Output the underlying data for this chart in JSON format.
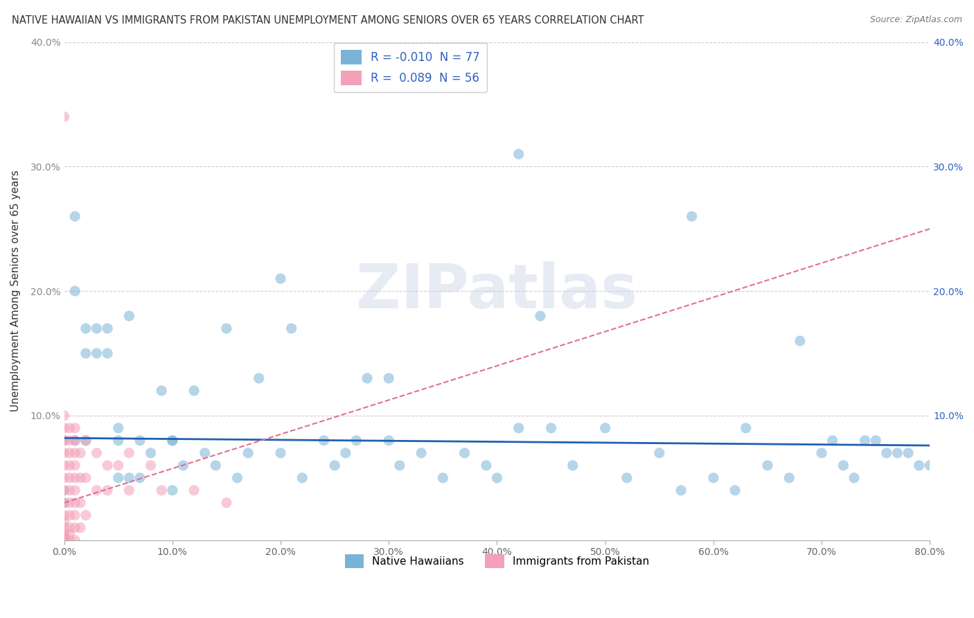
{
  "title": "NATIVE HAWAIIAN VS IMMIGRANTS FROM PAKISTAN UNEMPLOYMENT AMONG SENIORS OVER 65 YEARS CORRELATION CHART",
  "source": "Source: ZipAtlas.com",
  "ylabel": "Unemployment Among Seniors over 65 years",
  "legend_labels": [
    "Native Hawaiians",
    "Immigrants from Pakistan"
  ],
  "xlim": [
    0.0,
    0.8
  ],
  "ylim": [
    0.0,
    0.4
  ],
  "xticks": [
    0.0,
    0.1,
    0.2,
    0.3,
    0.4,
    0.5,
    0.6,
    0.7,
    0.8
  ],
  "yticks": [
    0.0,
    0.1,
    0.2,
    0.3,
    0.4
  ],
  "xticklabels": [
    "0.0%",
    "10.0%",
    "20.0%",
    "30.0%",
    "40.0%",
    "50.0%",
    "60.0%",
    "70.0%",
    "80.0%"
  ],
  "yticklabels_left": [
    "",
    "10.0%",
    "20.0%",
    "30.0%",
    "40.0%"
  ],
  "yticklabels_right": [
    "",
    "10.0%",
    "20.0%",
    "30.0%",
    "40.0%"
  ],
  "blue_scatter_color": "#7ab3d8",
  "pink_scatter_color": "#f4a0b8",
  "blue_line_color": "#2060b0",
  "pink_line_color": "#e07090",
  "right_tick_color": "#3060c0",
  "left_tick_color": "#888888",
  "background_color": "#ffffff",
  "watermark_zip": "ZIP",
  "watermark_atlas": "atlas",
  "watermark_z": "Z",
  "R_blue": -0.01,
  "R_pink": 0.089,
  "N_blue": 77,
  "N_pink": 56,
  "blue_points_x": [
    0.01,
    0.01,
    0.01,
    0.02,
    0.02,
    0.02,
    0.03,
    0.03,
    0.04,
    0.04,
    0.05,
    0.05,
    0.06,
    0.06,
    0.07,
    0.07,
    0.08,
    0.09,
    0.1,
    0.1,
    0.11,
    0.12,
    0.13,
    0.14,
    0.15,
    0.16,
    0.17,
    0.18,
    0.2,
    0.21,
    0.22,
    0.24,
    0.25,
    0.26,
    0.27,
    0.28,
    0.3,
    0.31,
    0.33,
    0.35,
    0.37,
    0.39,
    0.4,
    0.42,
    0.44,
    0.45,
    0.47,
    0.5,
    0.52,
    0.55,
    0.57,
    0.58,
    0.6,
    0.62,
    0.63,
    0.65,
    0.67,
    0.68,
    0.7,
    0.71,
    0.72,
    0.73,
    0.74,
    0.75,
    0.76,
    0.77,
    0.78,
    0.79,
    0.8,
    0.0,
    0.0,
    0.0,
    0.05,
    0.1,
    0.2,
    0.3,
    0.42
  ],
  "blue_points_y": [
    0.26,
    0.2,
    0.08,
    0.17,
    0.15,
    0.08,
    0.17,
    0.15,
    0.17,
    0.15,
    0.08,
    0.05,
    0.18,
    0.05,
    0.08,
    0.05,
    0.07,
    0.12,
    0.08,
    0.04,
    0.06,
    0.12,
    0.07,
    0.06,
    0.17,
    0.05,
    0.07,
    0.13,
    0.21,
    0.17,
    0.05,
    0.08,
    0.06,
    0.07,
    0.08,
    0.13,
    0.08,
    0.06,
    0.07,
    0.05,
    0.07,
    0.06,
    0.05,
    0.31,
    0.18,
    0.09,
    0.06,
    0.09,
    0.05,
    0.07,
    0.04,
    0.26,
    0.05,
    0.04,
    0.09,
    0.06,
    0.05,
    0.16,
    0.07,
    0.08,
    0.06,
    0.05,
    0.08,
    0.08,
    0.07,
    0.07,
    0.07,
    0.06,
    0.06,
    0.08,
    0.04,
    0.03,
    0.09,
    0.08,
    0.07,
    0.13,
    0.09
  ],
  "pink_points_x": [
    0.0,
    0.0,
    0.0,
    0.0,
    0.0,
    0.0,
    0.0,
    0.0,
    0.0,
    0.0,
    0.0,
    0.0,
    0.0,
    0.0,
    0.0,
    0.0,
    0.0,
    0.005,
    0.005,
    0.005,
    0.005,
    0.005,
    0.005,
    0.005,
    0.005,
    0.005,
    0.005,
    0.005,
    0.01,
    0.01,
    0.01,
    0.01,
    0.01,
    0.01,
    0.01,
    0.01,
    0.01,
    0.01,
    0.015,
    0.015,
    0.015,
    0.015,
    0.02,
    0.02,
    0.02,
    0.03,
    0.03,
    0.04,
    0.04,
    0.05,
    0.06,
    0.06,
    0.08,
    0.09,
    0.12,
    0.15
  ],
  "pink_points_y": [
    0.34,
    0.1,
    0.09,
    0.08,
    0.07,
    0.06,
    0.05,
    0.04,
    0.03,
    0.02,
    0.015,
    0.01,
    0.005,
    0.003,
    0.002,
    0.001,
    0.0,
    0.09,
    0.08,
    0.07,
    0.06,
    0.05,
    0.04,
    0.03,
    0.02,
    0.01,
    0.005,
    0.0,
    0.09,
    0.08,
    0.07,
    0.06,
    0.05,
    0.04,
    0.03,
    0.02,
    0.01,
    0.0,
    0.07,
    0.05,
    0.03,
    0.01,
    0.08,
    0.05,
    0.02,
    0.07,
    0.04,
    0.06,
    0.04,
    0.06,
    0.07,
    0.04,
    0.06,
    0.04,
    0.04,
    0.03
  ],
  "blue_trend_x": [
    0.0,
    0.8
  ],
  "blue_trend_y": [
    0.082,
    0.076
  ],
  "pink_trend_x": [
    0.0,
    0.8
  ],
  "pink_trend_y": [
    0.03,
    0.25
  ]
}
